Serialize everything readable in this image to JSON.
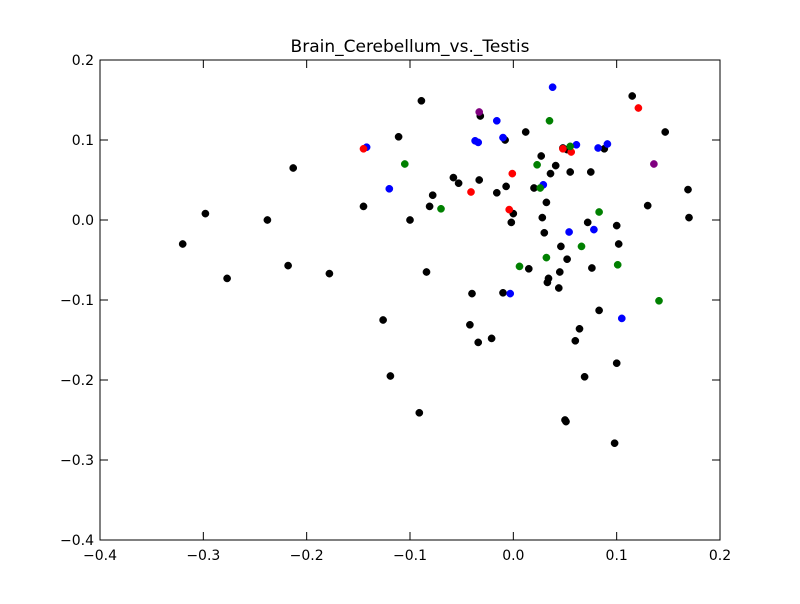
{
  "chart_data": {
    "type": "scatter",
    "title": "Brain_Cerebellum_vs._Testis",
    "xlabel": "",
    "ylabel": "",
    "xlim": [
      -0.4,
      0.2
    ],
    "ylim": [
      -0.4,
      0.2
    ],
    "x_ticks": [
      -0.4,
      -0.3,
      -0.2,
      -0.1,
      0.0,
      0.1,
      0.2
    ],
    "y_ticks": [
      -0.4,
      -0.3,
      -0.2,
      -0.1,
      0.0,
      0.1,
      0.2
    ],
    "x_tick_labels": [
      "−0.4",
      "−0.3",
      "−0.2",
      "−0.1",
      "0.0",
      "0.1",
      "0.2"
    ],
    "y_tick_labels": [
      "−0.4",
      "−0.3",
      "−0.2",
      "−0.1",
      "0.0",
      "0.1",
      "0.2"
    ],
    "grid": false,
    "legend": "none",
    "series": [
      {
        "color": "#000000",
        "points": [
          [
            -0.32,
            -0.03
          ],
          [
            -0.298,
            0.008
          ],
          [
            -0.277,
            -0.073
          ],
          [
            -0.238,
            0.0
          ],
          [
            -0.218,
            -0.057
          ],
          [
            -0.213,
            0.065
          ],
          [
            -0.178,
            -0.067
          ],
          [
            -0.145,
            0.017
          ],
          [
            -0.126,
            -0.125
          ],
          [
            -0.119,
            -0.195
          ],
          [
            -0.111,
            0.104
          ],
          [
            -0.1,
            0.0
          ],
          [
            -0.091,
            -0.241
          ],
          [
            -0.089,
            0.149
          ],
          [
            -0.084,
            -0.065
          ],
          [
            -0.081,
            0.017
          ],
          [
            -0.078,
            0.031
          ],
          [
            -0.058,
            0.053
          ],
          [
            -0.053,
            0.046
          ],
          [
            -0.042,
            -0.131
          ],
          [
            -0.04,
            -0.092
          ],
          [
            -0.034,
            -0.153
          ],
          [
            -0.033,
            0.05
          ],
          [
            -0.032,
            0.13
          ],
          [
            -0.021,
            -0.148
          ],
          [
            -0.016,
            0.034
          ],
          [
            -0.01,
            -0.091
          ],
          [
            -0.008,
            0.1
          ],
          [
            -0.007,
            0.042
          ],
          [
            -0.002,
            -0.003
          ],
          [
            0.0,
            0.008
          ],
          [
            0.012,
            0.11
          ],
          [
            0.015,
            -0.061
          ],
          [
            0.02,
            0.04
          ],
          [
            0.027,
            0.08
          ],
          [
            0.028,
            0.003
          ],
          [
            0.03,
            -0.016
          ],
          [
            0.032,
            0.022
          ],
          [
            0.033,
            -0.078
          ],
          [
            0.034,
            -0.073
          ],
          [
            0.036,
            0.058
          ],
          [
            0.041,
            0.068
          ],
          [
            0.044,
            -0.085
          ],
          [
            0.045,
            -0.065
          ],
          [
            0.046,
            -0.033
          ],
          [
            0.048,
            0.09
          ],
          [
            0.05,
            -0.25
          ],
          [
            0.051,
            -0.252
          ],
          [
            0.052,
            0.088
          ],
          [
            0.055,
            0.06
          ],
          [
            0.06,
            -0.151
          ],
          [
            0.064,
            -0.136
          ],
          [
            0.069,
            -0.196
          ],
          [
            0.072,
            -0.003
          ],
          [
            0.075,
            0.06
          ],
          [
            0.076,
            -0.06
          ],
          [
            0.083,
            -0.113
          ],
          [
            0.088,
            0.089
          ],
          [
            0.098,
            -0.279
          ],
          [
            0.1,
            -0.179
          ],
          [
            0.1,
            -0.007
          ],
          [
            0.102,
            -0.03
          ],
          [
            0.115,
            0.155
          ],
          [
            0.13,
            0.018
          ],
          [
            0.147,
            0.11
          ],
          [
            0.169,
            0.038
          ],
          [
            0.17,
            0.003
          ],
          [
            0.052,
            -0.049
          ]
        ]
      },
      {
        "color": "#0000ff",
        "points": [
          [
            -0.142,
            0.091
          ],
          [
            -0.12,
            0.039
          ],
          [
            -0.037,
            0.099
          ],
          [
            -0.034,
            0.097
          ],
          [
            -0.016,
            0.124
          ],
          [
            -0.01,
            0.103
          ],
          [
            -0.003,
            -0.092
          ],
          [
            0.029,
            0.044
          ],
          [
            0.038,
            0.166
          ],
          [
            0.054,
            -0.015
          ],
          [
            0.061,
            0.094
          ],
          [
            0.078,
            -0.012
          ],
          [
            0.082,
            0.09
          ],
          [
            0.091,
            0.095
          ],
          [
            0.105,
            -0.123
          ]
        ]
      },
      {
        "color": "#ff0000",
        "points": [
          [
            -0.145,
            0.089
          ],
          [
            -0.041,
            0.035
          ],
          [
            -0.004,
            0.013
          ],
          [
            -0.001,
            0.058
          ],
          [
            0.048,
            0.089
          ],
          [
            0.056,
            0.085
          ],
          [
            0.121,
            0.14
          ]
        ]
      },
      {
        "color": "#008000",
        "points": [
          [
            -0.105,
            0.07
          ],
          [
            -0.07,
            0.014
          ],
          [
            0.006,
            -0.058
          ],
          [
            0.023,
            0.069
          ],
          [
            0.026,
            0.04
          ],
          [
            0.032,
            -0.047
          ],
          [
            0.035,
            0.124
          ],
          [
            0.055,
            0.092
          ],
          [
            0.066,
            -0.033
          ],
          [
            0.083,
            0.01
          ],
          [
            0.101,
            -0.056
          ],
          [
            0.141,
            -0.101
          ]
        ]
      },
      {
        "color": "#800080",
        "points": [
          [
            -0.033,
            0.135
          ],
          [
            0.136,
            0.07
          ]
        ]
      }
    ]
  }
}
